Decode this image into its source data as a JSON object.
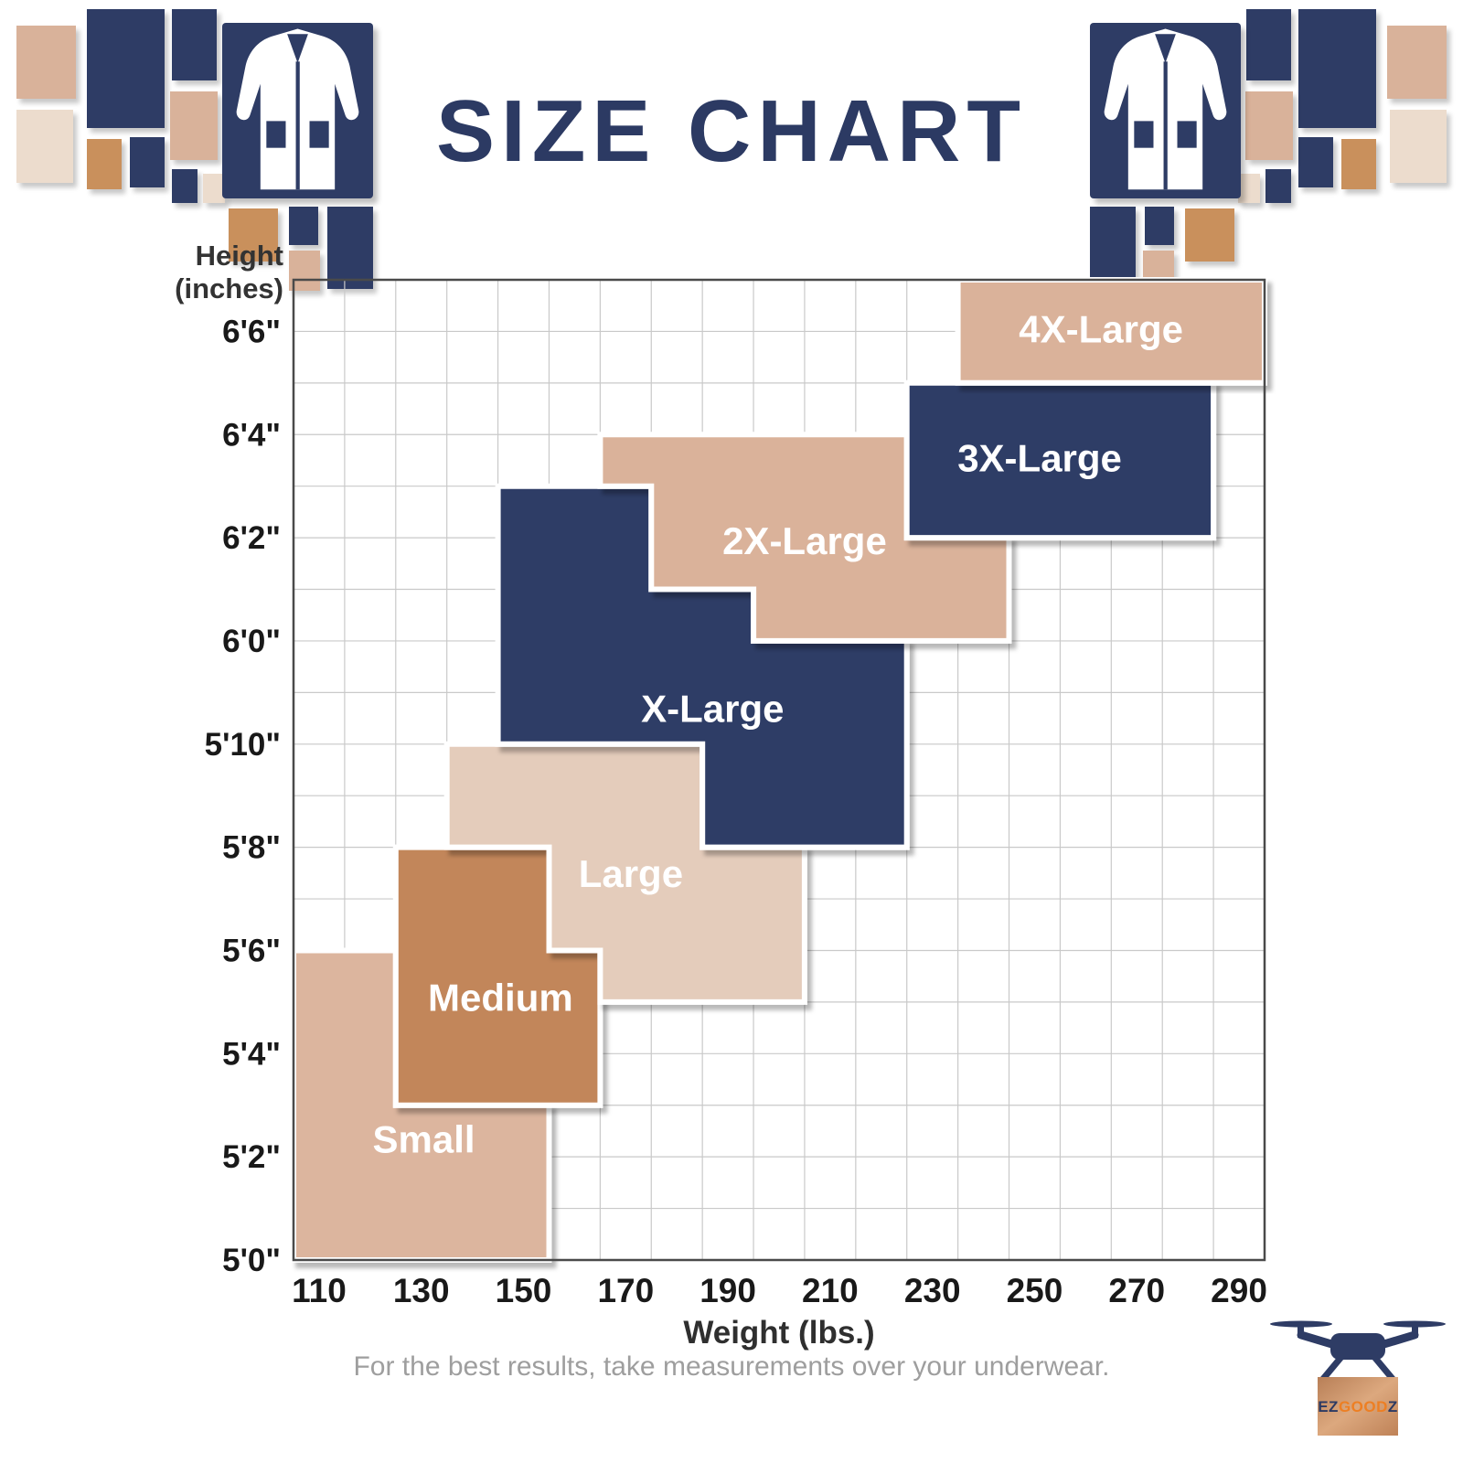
{
  "header": {
    "title": "SIZE CHART"
  },
  "chart_data": {
    "type": "area",
    "title": "SIZE CHART",
    "xlabel": "Weight (lbs.)",
    "ylabel": "Height (inches)",
    "ylabel_lines": [
      "Height",
      "(inches)"
    ],
    "x_domain": [
      105,
      295
    ],
    "y_domain_inches": [
      60,
      79
    ],
    "x_ticks": [
      110,
      130,
      150,
      170,
      190,
      210,
      230,
      250,
      270,
      290
    ],
    "y_ticks": [
      {
        "inches": 60,
        "label": "5'0\""
      },
      {
        "inches": 62,
        "label": "5'2\""
      },
      {
        "inches": 64,
        "label": "5'4\""
      },
      {
        "inches": 66,
        "label": "5'6\""
      },
      {
        "inches": 68,
        "label": "5'8\""
      },
      {
        "inches": 70,
        "label": "5'10\""
      },
      {
        "inches": 72,
        "label": "6'0\""
      },
      {
        "inches": 74,
        "label": "6'2\""
      },
      {
        "inches": 76,
        "label": "6'4\""
      },
      {
        "inches": 78,
        "label": "6'6\""
      }
    ],
    "grid": {
      "on": true,
      "x_step": 10,
      "y_step": 1
    },
    "regions": [
      {
        "id": "small",
        "label": "Small",
        "color": "#dcb59e",
        "label_at": [
          130.5,
          62.35
        ],
        "weight_range_lbs": [
          105,
          155
        ],
        "height_range": [
          "5'0\"",
          "5'6\""
        ],
        "polygon": [
          [
            105,
            66
          ],
          [
            125,
            66
          ],
          [
            125,
            63
          ],
          [
            155,
            63
          ],
          [
            155,
            60
          ],
          [
            105,
            60
          ]
        ]
      },
      {
        "id": "medium",
        "label": "Medium",
        "color": "#c2865a",
        "label_at": [
          145.5,
          65.1
        ],
        "weight_range_lbs": [
          125,
          165
        ],
        "height_range": [
          "5'3\"",
          "5'8\""
        ],
        "polygon": [
          [
            125,
            68
          ],
          [
            155,
            68
          ],
          [
            155,
            66
          ],
          [
            165,
            66
          ],
          [
            165,
            63
          ],
          [
            125,
            63
          ]
        ]
      },
      {
        "id": "large",
        "label": "Large",
        "color": "#e4ccbb",
        "label_at": [
          171,
          67.5
        ],
        "weight_range_lbs": [
          135,
          205
        ],
        "height_range": [
          "5'5\"",
          "5'10\""
        ],
        "polygon": [
          [
            135,
            70
          ],
          [
            185,
            70
          ],
          [
            185,
            68
          ],
          [
            205,
            68
          ],
          [
            205,
            65
          ],
          [
            165,
            65
          ],
          [
            165,
            66
          ],
          [
            155,
            66
          ],
          [
            155,
            68
          ],
          [
            135,
            68
          ]
        ]
      },
      {
        "id": "x-large",
        "label": "X-Large",
        "color": "#2e3d66",
        "label_at": [
          187,
          70.7
        ],
        "weight_range_lbs": [
          145,
          225
        ],
        "height_range": [
          "5'8\"",
          "6'3\""
        ],
        "polygon": [
          [
            145,
            75
          ],
          [
            175,
            75
          ],
          [
            175,
            73
          ],
          [
            195,
            73
          ],
          [
            195,
            72
          ],
          [
            225,
            72
          ],
          [
            225,
            68
          ],
          [
            185,
            68
          ],
          [
            185,
            70
          ],
          [
            145,
            70
          ]
        ]
      },
      {
        "id": "2x-large",
        "label": "2X-Large",
        "color": "#dab29a",
        "label_at": [
          205,
          73.95
        ],
        "weight_range_lbs": [
          165,
          245
        ],
        "height_range": [
          "6'0\"",
          "6'4\""
        ],
        "polygon": [
          [
            165,
            76
          ],
          [
            225,
            76
          ],
          [
            225,
            74
          ],
          [
            245,
            74
          ],
          [
            245,
            72
          ],
          [
            195,
            72
          ],
          [
            195,
            73
          ],
          [
            175,
            73
          ],
          [
            175,
            75
          ],
          [
            165,
            75
          ]
        ]
      },
      {
        "id": "3x-large",
        "label": "3X-Large",
        "color": "#2e3d66",
        "label_at": [
          251,
          75.55
        ],
        "weight_range_lbs": [
          225,
          285
        ],
        "height_range": [
          "6'2\"",
          "6'5\""
        ],
        "polygon": [
          [
            225,
            77
          ],
          [
            285,
            77
          ],
          [
            285,
            74
          ],
          [
            225,
            74
          ]
        ]
      },
      {
        "id": "4x-large",
        "label": "4X-Large",
        "color": "#dab29a",
        "label_at": [
          263,
          78.05
        ],
        "weight_range_lbs": [
          235,
          295
        ],
        "height_range": [
          "6'5\"",
          "6'7\""
        ],
        "polygon": [
          [
            235,
            79
          ],
          [
            295,
            79
          ],
          [
            295,
            77
          ],
          [
            235,
            77
          ]
        ]
      }
    ]
  },
  "footer": {
    "note": "For the best results, take measurements over your underwear."
  },
  "logo": {
    "ez": "EZ",
    "good": "GOOD",
    "z": "Z"
  },
  "palette": {
    "navy": "#2e3c65",
    "copper": "#c9905c",
    "tan": "#d9b29a",
    "pale": "#ecdccd",
    "title": "#2c3a63",
    "orange": "#ed7f23"
  }
}
